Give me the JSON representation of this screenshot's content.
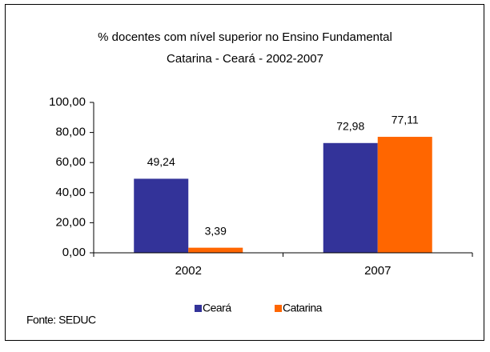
{
  "chart_data": {
    "type": "bar",
    "title": "% docentes com nível superior no Ensino Fundamental",
    "subtitle": "Catarina - Ceará - 2002-2007",
    "categories": [
      "2002",
      "2007"
    ],
    "series": [
      {
        "name": "Ceará",
        "color": "#333399",
        "values": [
          49.24,
          72.98
        ],
        "value_labels": [
          "49,24",
          "72,98"
        ]
      },
      {
        "name": "Catarina",
        "color": "#ff6600",
        "values": [
          3.39,
          77.11
        ],
        "value_labels": [
          "3,39",
          "77,11"
        ]
      }
    ],
    "ylim": [
      0,
      100
    ],
    "yticks": [
      {
        "value": 0,
        "label": "0,00"
      },
      {
        "value": 20,
        "label": "20,00"
      },
      {
        "value": 40,
        "label": "40,00"
      },
      {
        "value": 60,
        "label": "60,00"
      },
      {
        "value": 80,
        "label": "80,00"
      },
      {
        "value": 100,
        "label": "100,00"
      }
    ],
    "grid": false,
    "legend": "bottom",
    "source": "Fonte: SEDUC"
  }
}
